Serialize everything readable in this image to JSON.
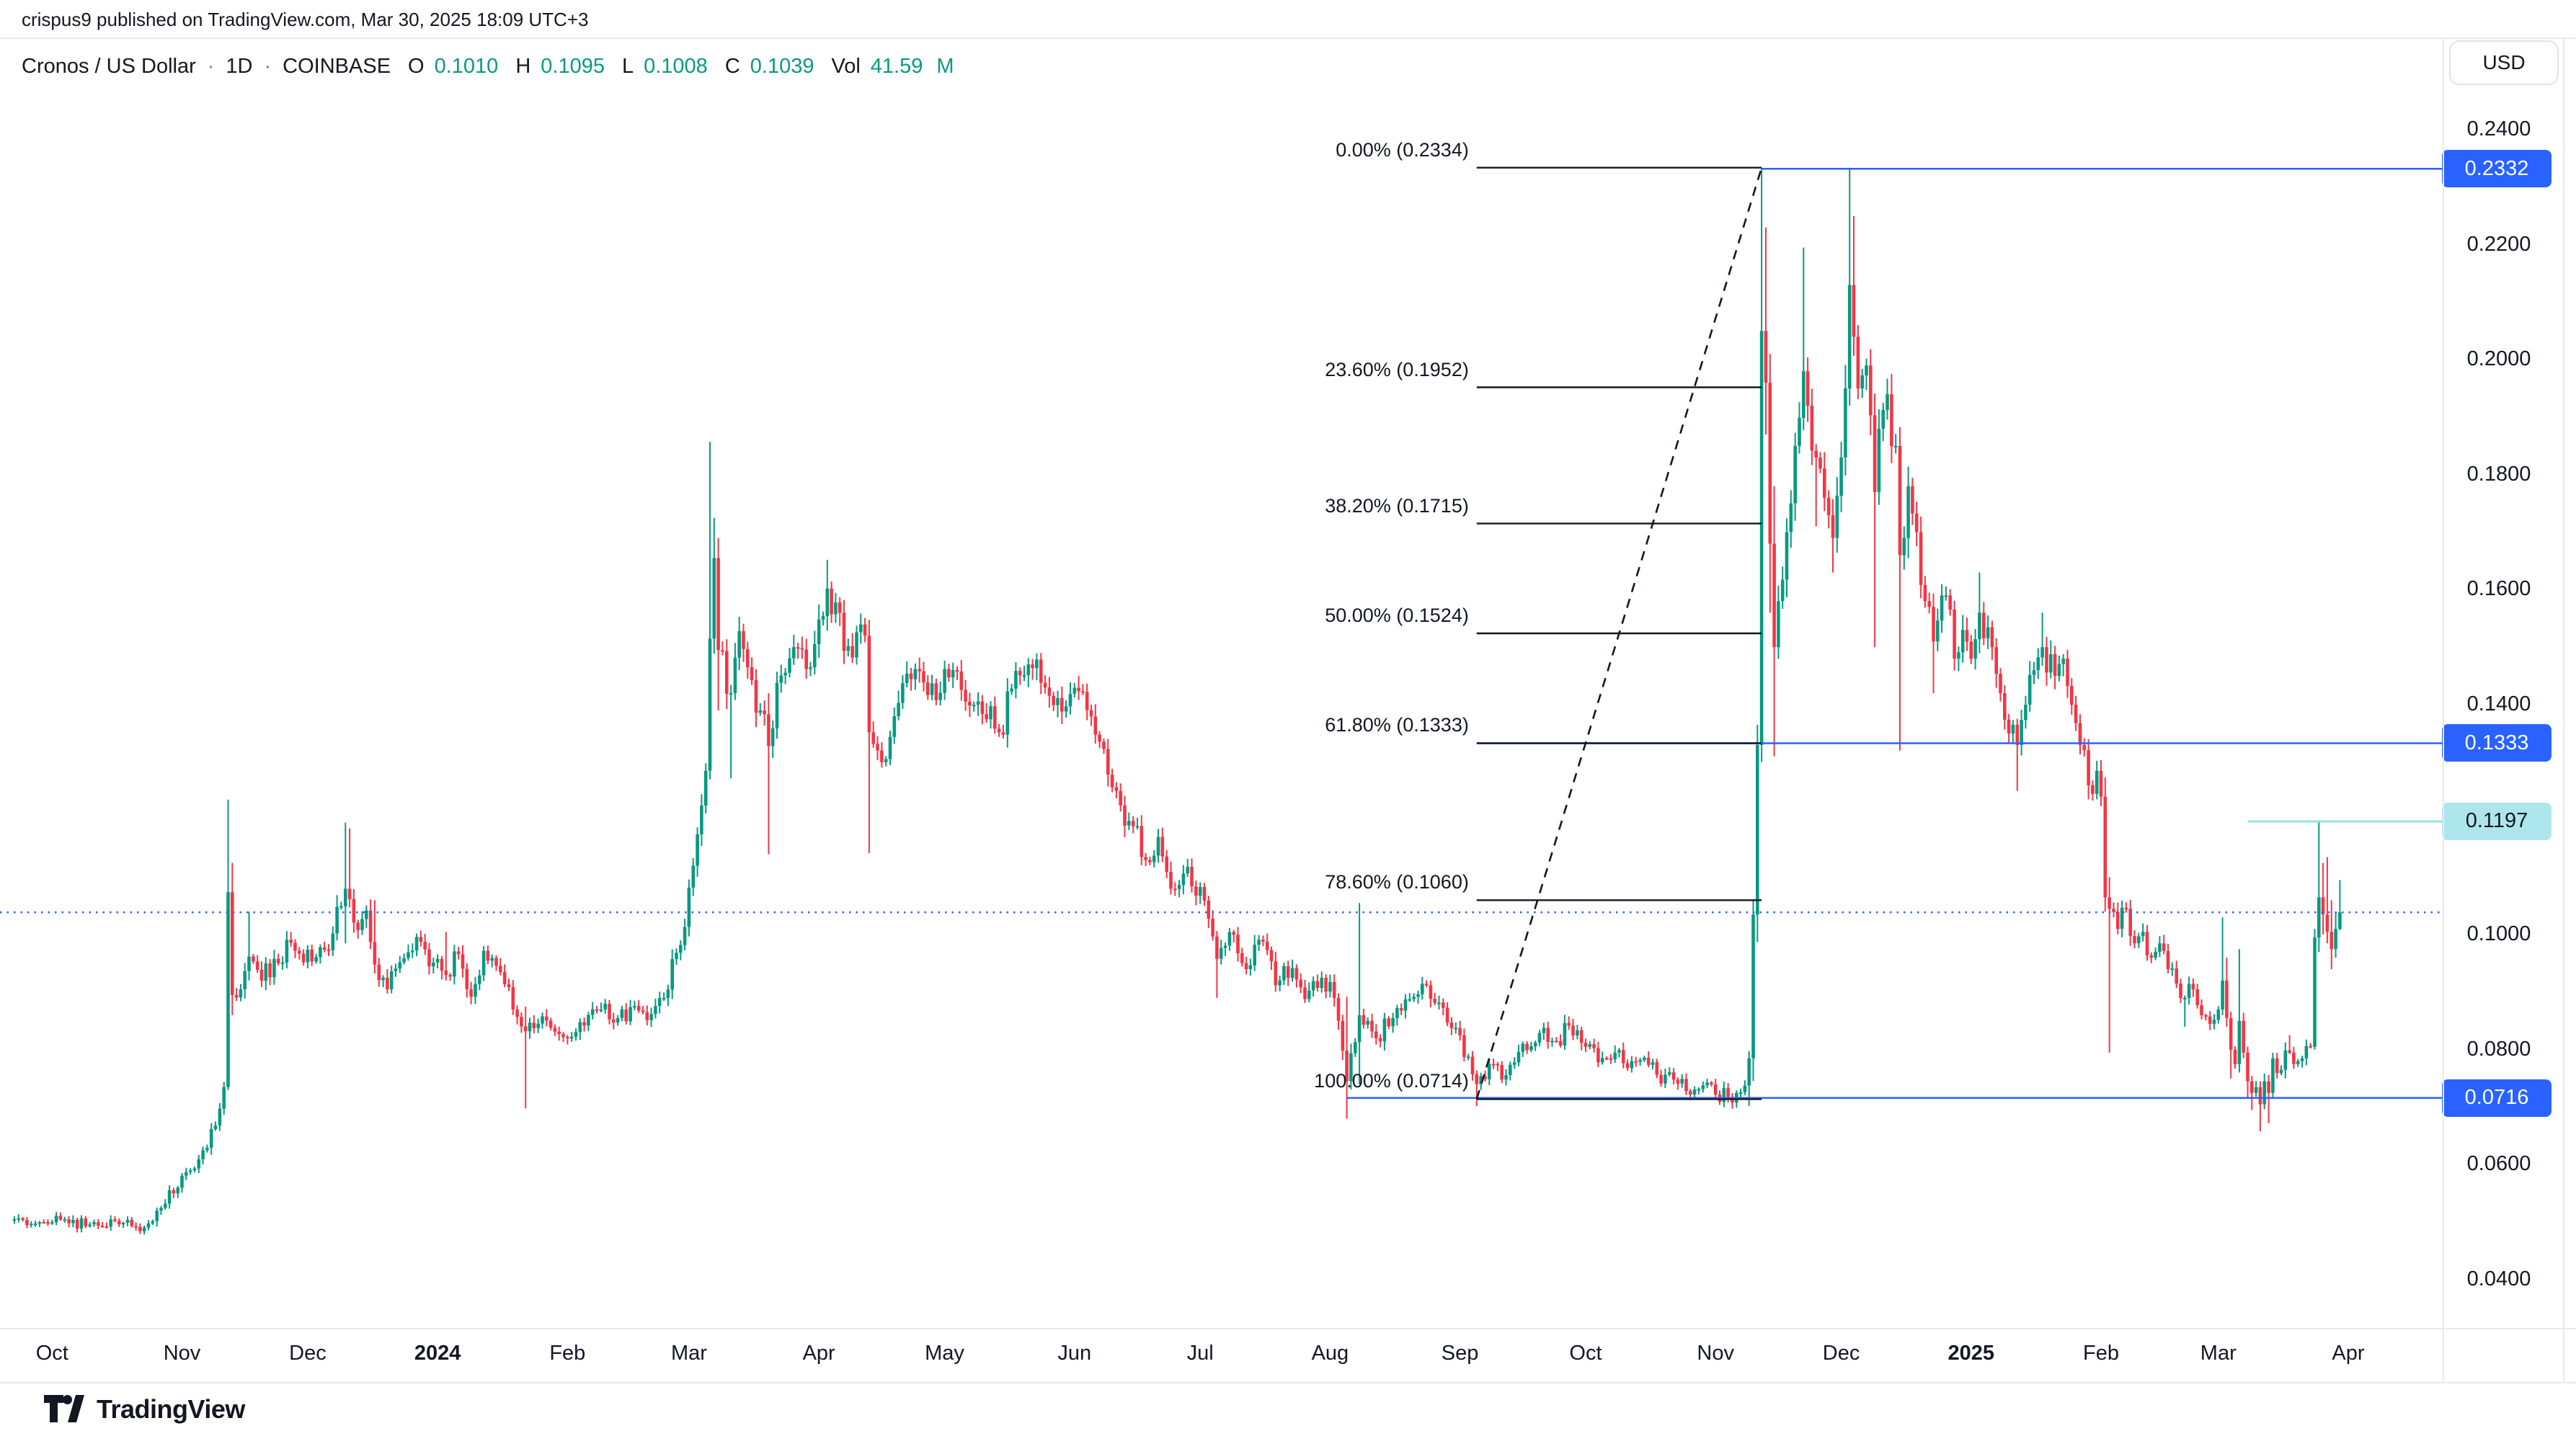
{
  "header": {
    "byline": "crispus9 published on TradingView.com, Mar 30, 2025 18:09 UTC+3"
  },
  "legend": {
    "symbol": "Cronos / US Dollar",
    "sep": "·",
    "interval": "1D",
    "exchange": "COINBASE",
    "o_label": "O",
    "o": "0.1010",
    "h_label": "H",
    "h": "0.1095",
    "l_label": "L",
    "l": "0.1008",
    "c_label": "C",
    "c": "0.1039",
    "vol_label": "Vol",
    "vol": "41.59",
    "vol_unit": "M"
  },
  "price_axis": {
    "currency": "USD",
    "ticks": [
      0.24,
      0.22,
      0.2,
      0.18,
      0.16,
      0.14,
      0.12,
      0.1,
      0.08,
      0.06,
      0.04
    ],
    "badges": [
      {
        "text": "0.2332",
        "price": 0.2332,
        "style": "blue"
      },
      {
        "text": "0.1333",
        "price": 0.1333,
        "style": "blue"
      },
      {
        "text": "0.1197",
        "price": 0.1197,
        "style": "teal"
      },
      {
        "text": "0.0716",
        "price": 0.0716,
        "style": "blue"
      }
    ]
  },
  "time_axis": {
    "labels": [
      {
        "text": "Oct",
        "date": "2023-10-01",
        "bold": false
      },
      {
        "text": "Nov",
        "date": "2023-11-01",
        "bold": false
      },
      {
        "text": "Dec",
        "date": "2023-12-01",
        "bold": false
      },
      {
        "text": "2024",
        "date": "2024-01-01",
        "bold": true
      },
      {
        "text": "Feb",
        "date": "2024-02-01",
        "bold": false
      },
      {
        "text": "Mar",
        "date": "2024-03-01",
        "bold": false
      },
      {
        "text": "Apr",
        "date": "2024-04-01",
        "bold": false
      },
      {
        "text": "May",
        "date": "2024-05-01",
        "bold": false
      },
      {
        "text": "Jun",
        "date": "2024-06-01",
        "bold": false
      },
      {
        "text": "Jul",
        "date": "2024-07-01",
        "bold": false
      },
      {
        "text": "Aug",
        "date": "2024-08-01",
        "bold": false
      },
      {
        "text": "Sep",
        "date": "2024-09-01",
        "bold": false
      },
      {
        "text": "Oct",
        "date": "2024-10-01",
        "bold": false
      },
      {
        "text": "Nov",
        "date": "2024-11-01",
        "bold": false
      },
      {
        "text": "Dec",
        "date": "2024-12-01",
        "bold": false
      },
      {
        "text": "2025",
        "date": "2025-01-01",
        "bold": true
      },
      {
        "text": "Feb",
        "date": "2025-02-01",
        "bold": false
      },
      {
        "text": "Mar",
        "date": "2025-03-01",
        "bold": false
      },
      {
        "text": "Apr",
        "date": "2025-04-01",
        "bold": false
      }
    ]
  },
  "footer": {
    "logo_text": "TradingView"
  },
  "colors": {
    "up": "#089981",
    "down": "#F23645",
    "blue": "#2962FF",
    "teal_line": "#9BDFE6",
    "fib_line": "#131722",
    "text": "#131722",
    "border": "#E8EAF0"
  },
  "chart_data": {
    "type": "candlestick",
    "title": "Cronos / US Dollar",
    "interval": "1D",
    "exchange": "COINBASE",
    "x_start_date": "2023-09-22",
    "x_end_date": "2025-03-30",
    "y_ticks": [
      0.24,
      0.22,
      0.2,
      0.18,
      0.16,
      0.14,
      0.12,
      0.1,
      0.08,
      0.06,
      0.04
    ],
    "last_bar": {
      "open": 0.101,
      "high": 0.1095,
      "low": 0.1008,
      "close": 0.1039,
      "volume_label": "41.59M"
    },
    "current_price": 0.1039,
    "fibonacci": {
      "from_date": "2024-09-05",
      "to_date": "2024-11-12",
      "trend_from_price": 0.0714,
      "trend_to_price": 0.2334,
      "levels": [
        {
          "pct": "0.00%",
          "price": 0.2334,
          "label": "0.00% (0.2334)"
        },
        {
          "pct": "23.60%",
          "price": 0.1952,
          "label": "23.60% (0.1952)"
        },
        {
          "pct": "38.20%",
          "price": 0.1715,
          "label": "38.20% (0.1715)"
        },
        {
          "pct": "50.00%",
          "price": 0.1524,
          "label": "50.00% (0.1524)"
        },
        {
          "pct": "61.80%",
          "price": 0.1333,
          "label": "61.80% (0.1333)"
        },
        {
          "pct": "78.60%",
          "price": 0.106,
          "label": "78.60% (0.1060)"
        },
        {
          "pct": "100.00%",
          "price": 0.0714,
          "label": "100.00% (0.0714)"
        }
      ]
    },
    "horizontal_rays": [
      {
        "price": 0.2332,
        "from_date": "2024-11-12",
        "style": "blue"
      },
      {
        "price": 0.1333,
        "from_date": "2024-09-05",
        "style": "blue"
      },
      {
        "price": 0.0716,
        "from_date": "2024-08-05",
        "style": "blue"
      },
      {
        "price": 0.1197,
        "from_date": "2025-03-08",
        "style": "teal"
      }
    ],
    "anchors": [
      [
        "2023-09-22",
        0.0505
      ],
      [
        "2023-09-28",
        0.05
      ],
      [
        "2023-10-04",
        0.0505
      ],
      [
        "2023-10-10",
        0.0496
      ],
      [
        "2023-10-16",
        0.0502
      ],
      [
        "2023-10-21",
        0.0492
      ],
      [
        "2023-10-24",
        0.0498
      ],
      [
        "2023-10-27",
        0.0525
      ],
      [
        "2023-10-31",
        0.056
      ],
      [
        "2023-11-03",
        0.059
      ],
      [
        "2023-11-06",
        0.0625
      ],
      [
        "2023-11-09",
        0.0668
      ],
      [
        "2023-11-11",
        0.0735
      ],
      [
        "2023-11-12",
        0.1074,
        0.1235,
        0.073
      ],
      [
        "2023-11-13",
        0.0895,
        0.1125,
        0.086
      ],
      [
        "2023-11-15",
        0.0905
      ],
      [
        "2023-11-17",
        0.0962,
        0.104
      ],
      [
        "2023-11-20",
        0.092
      ],
      [
        "2023-11-23",
        0.0958
      ],
      [
        "2023-11-27",
        0.0986
      ],
      [
        "2023-11-30",
        0.0952
      ],
      [
        "2023-12-04",
        0.0978
      ],
      [
        "2023-12-07",
        0.1002
      ],
      [
        "2023-12-10",
        0.108,
        0.1195,
        0.0985
      ],
      [
        "2023-12-11",
        0.1062,
        0.1185
      ],
      [
        "2023-12-13",
        0.1008
      ],
      [
        "2023-12-15",
        0.1042
      ],
      [
        "2023-12-17",
        0.0948,
        0.106
      ],
      [
        "2023-12-20",
        0.0905
      ],
      [
        "2023-12-23",
        0.0952
      ],
      [
        "2023-12-27",
        0.0996
      ],
      [
        "2023-12-30",
        0.0945
      ],
      [
        "2024-01-03",
        0.093,
        0.1005
      ],
      [
        "2024-01-06",
        0.0966
      ],
      [
        "2024-01-09",
        0.0892
      ],
      [
        "2024-01-12",
        0.0972
      ],
      [
        "2024-01-16",
        0.0935
      ],
      [
        "2024-01-19",
        0.087
      ],
      [
        "2024-01-22",
        0.0832,
        0.0875,
        0.0698
      ],
      [
        "2024-01-26",
        0.0858
      ],
      [
        "2024-01-31",
        0.0822
      ],
      [
        "2024-02-05",
        0.0842
      ],
      [
        "2024-02-09",
        0.087
      ],
      [
        "2024-02-13",
        0.0855
      ],
      [
        "2024-02-17",
        0.0876
      ],
      [
        "2024-02-21",
        0.0862
      ],
      [
        "2024-02-24",
        0.089
      ],
      [
        "2024-02-28",
        0.0982
      ],
      [
        "2024-03-02",
        0.112
      ],
      [
        "2024-03-05",
        0.1285
      ],
      [
        "2024-03-06",
        0.1515,
        0.1857,
        0.127
      ],
      [
        "2024-03-07",
        0.1655,
        0.1725
      ],
      [
        "2024-03-08",
        0.1495,
        0.169,
        0.139
      ],
      [
        "2024-03-11",
        0.142,
        null,
        0.1272
      ],
      [
        "2024-03-13",
        0.1528
      ],
      [
        "2024-03-15",
        0.1465
      ],
      [
        "2024-03-18",
        0.139
      ],
      [
        "2024-03-20",
        0.1328,
        0.142,
        0.114
      ],
      [
        "2024-03-22",
        0.1438
      ],
      [
        "2024-03-26",
        0.15
      ],
      [
        "2024-03-29",
        0.1462
      ],
      [
        "2024-04-01",
        0.1548
      ],
      [
        "2024-04-03",
        0.1602,
        0.1652
      ],
      [
        "2024-04-05",
        0.1578
      ],
      [
        "2024-04-09",
        0.1482
      ],
      [
        "2024-04-12",
        0.152
      ],
      [
        "2024-04-13",
        0.1352,
        null,
        0.1142
      ],
      [
        "2024-04-16",
        0.13
      ],
      [
        "2024-04-19",
        0.138
      ],
      [
        "2024-04-24",
        0.1462
      ],
      [
        "2024-04-29",
        0.1408
      ],
      [
        "2024-05-03",
        0.146
      ],
      [
        "2024-05-08",
        0.14
      ],
      [
        "2024-05-14",
        0.1352
      ],
      [
        "2024-05-17",
        0.1428
      ],
      [
        "2024-05-21",
        0.147
      ],
      [
        "2024-05-24",
        0.1438
      ],
      [
        "2024-05-29",
        0.1388
      ],
      [
        "2024-06-03",
        0.1422
      ],
      [
        "2024-06-06",
        0.1348
      ],
      [
        "2024-06-11",
        0.125
      ],
      [
        "2024-06-14",
        0.1198
      ],
      [
        "2024-06-18",
        0.113
      ],
      [
        "2024-06-21",
        0.117
      ],
      [
        "2024-06-24",
        0.108
      ],
      [
        "2024-06-28",
        0.1118
      ],
      [
        "2024-07-03",
        0.1028
      ],
      [
        "2024-07-05",
        0.0958,
        null,
        0.089
      ],
      [
        "2024-07-09",
        0.1
      ],
      [
        "2024-07-12",
        0.094
      ],
      [
        "2024-07-16",
        0.0988
      ],
      [
        "2024-07-19",
        0.0912
      ],
      [
        "2024-07-23",
        0.0942
      ],
      [
        "2024-07-26",
        0.0888
      ],
      [
        "2024-07-30",
        0.0925
      ],
      [
        "2024-08-02",
        0.089
      ],
      [
        "2024-08-05",
        0.0745,
        0.0892,
        0.068
      ],
      [
        "2024-08-08",
        0.086,
        0.1055,
        0.074
      ],
      [
        "2024-08-12",
        0.082
      ],
      [
        "2024-08-16",
        0.0855
      ],
      [
        "2024-08-20",
        0.0888
      ],
      [
        "2024-08-24",
        0.0912
      ],
      [
        "2024-08-27",
        0.0882
      ],
      [
        "2024-08-31",
        0.0838
      ],
      [
        "2024-09-03",
        0.0788
      ],
      [
        "2024-09-05",
        0.074,
        null,
        0.0702
      ],
      [
        "2024-09-09",
        0.0775
      ],
      [
        "2024-09-11",
        0.0748
      ],
      [
        "2024-09-14",
        0.0778
      ],
      [
        "2024-09-18",
        0.0806
      ],
      [
        "2024-09-21",
        0.0838
      ],
      [
        "2024-09-24",
        0.0815
      ],
      [
        "2024-09-27",
        0.0842,
        0.0858
      ],
      [
        "2024-10-01",
        0.0805
      ],
      [
        "2024-10-04",
        0.0778
      ],
      [
        "2024-10-08",
        0.0795
      ],
      [
        "2024-10-11",
        0.0768
      ],
      [
        "2024-10-15",
        0.0786
      ],
      [
        "2024-10-18",
        0.0756
      ],
      [
        "2024-10-22",
        0.0748
      ],
      [
        "2024-10-25",
        0.0728
      ],
      [
        "2024-10-29",
        0.0738
      ],
      [
        "2024-11-01",
        0.0722
      ],
      [
        "2024-11-04",
        0.0718,
        null,
        0.0708
      ],
      [
        "2024-11-07",
        0.0726
      ],
      [
        "2024-11-09",
        0.0785,
        null,
        0.0702
      ],
      [
        "2024-11-10",
        0.1035,
        0.106
      ],
      [
        "2024-11-11",
        0.133,
        0.1365
      ],
      [
        "2024-11-12",
        0.205,
        0.2334,
        0.13
      ],
      [
        "2024-11-13",
        0.196,
        0.223,
        0.187
      ],
      [
        "2024-11-14",
        0.168,
        0.201,
        0.156
      ],
      [
        "2024-11-15",
        0.15,
        0.178,
        0.131
      ],
      [
        "2024-11-16",
        0.158
      ],
      [
        "2024-11-18",
        0.17
      ],
      [
        "2024-11-20",
        0.185
      ],
      [
        "2024-11-22",
        0.198,
        0.2195
      ],
      [
        "2024-11-23",
        0.192
      ],
      [
        "2024-11-25",
        0.183,
        null,
        0.171
      ],
      [
        "2024-11-27",
        0.176
      ],
      [
        "2024-11-29",
        0.169,
        null,
        0.163
      ],
      [
        "2024-12-01",
        0.183
      ],
      [
        "2024-12-02",
        0.195
      ],
      [
        "2024-12-03",
        0.213,
        0.2334,
        0.192
      ],
      [
        "2024-12-04",
        0.204,
        0.225
      ],
      [
        "2024-12-05",
        0.195
      ],
      [
        "2024-12-07",
        0.199
      ],
      [
        "2024-12-09",
        0.177,
        null,
        0.15
      ],
      [
        "2024-12-10",
        0.188
      ],
      [
        "2024-12-12",
        0.194
      ],
      [
        "2024-12-14",
        0.185
      ],
      [
        "2024-12-15",
        0.166,
        null,
        0.132
      ],
      [
        "2024-12-17",
        0.178
      ],
      [
        "2024-12-19",
        0.17
      ],
      [
        "2024-12-21",
        0.158
      ],
      [
        "2024-12-23",
        0.151,
        null,
        0.142
      ],
      [
        "2024-12-26",
        0.159
      ],
      [
        "2024-12-28",
        0.148
      ],
      [
        "2024-12-30",
        0.153
      ],
      [
        "2025-01-01",
        0.148
      ],
      [
        "2025-01-03",
        0.156,
        0.163
      ],
      [
        "2025-01-06",
        0.15
      ],
      [
        "2025-01-08",
        0.142
      ],
      [
        "2025-01-10",
        0.135
      ],
      [
        "2025-01-12",
        0.133,
        null,
        0.125
      ],
      [
        "2025-01-14",
        0.14
      ],
      [
        "2025-01-16",
        0.146
      ],
      [
        "2025-01-18",
        0.15,
        0.156
      ],
      [
        "2025-01-21",
        0.145
      ],
      [
        "2025-01-23",
        0.148
      ],
      [
        "2025-01-25",
        0.14
      ],
      [
        "2025-01-27",
        0.133
      ],
      [
        "2025-01-29",
        0.126
      ],
      [
        "2025-01-31",
        0.1285
      ],
      [
        "2025-02-01",
        0.124
      ],
      [
        "2025-02-02",
        0.1065,
        null,
        0.104
      ],
      [
        "2025-02-03",
        0.1045,
        0.11,
        0.0795
      ],
      [
        "2025-02-05",
        0.101
      ],
      [
        "2025-02-07",
        0.1045
      ],
      [
        "2025-02-09",
        0.0985
      ],
      [
        "2025-02-11",
        0.1005
      ],
      [
        "2025-02-13",
        0.096
      ],
      [
        "2025-02-15",
        0.0985
      ],
      [
        "2025-02-17",
        0.094
      ],
      [
        "2025-02-19",
        0.0915
      ],
      [
        "2025-02-21",
        0.089,
        null,
        0.084
      ],
      [
        "2025-02-23",
        0.0905
      ],
      [
        "2025-02-25",
        0.086
      ],
      [
        "2025-02-27",
        0.0845
      ],
      [
        "2025-03-01",
        0.087
      ],
      [
        "2025-03-02",
        0.092,
        0.103,
        0.086
      ],
      [
        "2025-03-03",
        0.0855,
        0.096,
        0.084
      ],
      [
        "2025-03-04",
        0.08,
        null,
        0.075
      ],
      [
        "2025-03-05",
        0.0775
      ],
      [
        "2025-03-06",
        0.085,
        0.0975
      ],
      [
        "2025-03-07",
        0.0795
      ],
      [
        "2025-03-08",
        0.0745,
        null,
        0.0715
      ],
      [
        "2025-03-09",
        0.0725,
        null,
        0.0695
      ],
      [
        "2025-03-10",
        0.0735
      ],
      [
        "2025-03-11",
        0.0705,
        null,
        0.0658
      ],
      [
        "2025-03-12",
        0.0745
      ],
      [
        "2025-03-13",
        0.0725,
        null,
        0.0672
      ],
      [
        "2025-03-14",
        0.0785
      ],
      [
        "2025-03-16",
        0.0765
      ],
      [
        "2025-03-18",
        0.0795,
        0.0825
      ],
      [
        "2025-03-19",
        0.0775
      ],
      [
        "2025-03-21",
        0.0785
      ],
      [
        "2025-03-23",
        0.0805
      ],
      [
        "2025-03-24",
        0.0995,
        0.101,
        0.08
      ],
      [
        "2025-03-25",
        0.1065,
        0.1197,
        0.097
      ],
      [
        "2025-03-26",
        0.1035,
        0.1125,
        0.1
      ],
      [
        "2025-03-27",
        0.1005,
        0.1135,
        0.0985
      ],
      [
        "2025-03-28",
        0.0975,
        0.106,
        0.094
      ],
      [
        "2025-03-29",
        0.101,
        0.104,
        0.096
      ],
      [
        "2025-03-30",
        0.1039,
        0.1095,
        0.1008
      ]
    ]
  }
}
